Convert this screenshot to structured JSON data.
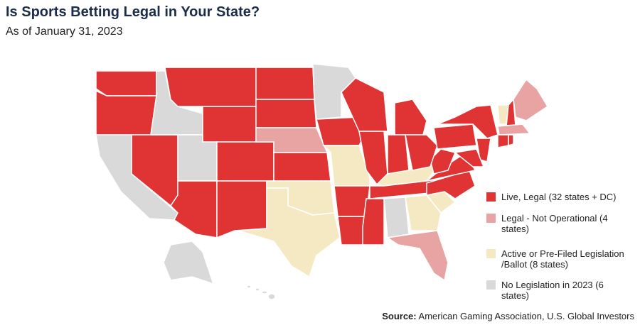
{
  "header": {
    "title": "Is Sports Betting Legal in Your State?",
    "subtitle": "As of January 31, 2023"
  },
  "legend": {
    "items": [
      {
        "label": "Live, Legal (32 states + DC)",
        "color": "#e03434"
      },
      {
        "label": "Legal - Not Operational (4 states)",
        "color": "#e8a3a3"
      },
      {
        "label": "Active or Pre-Filed Legislation /Ballot (8 states)",
        "color": "#f5e9c3"
      },
      {
        "label": "No Legislation in 2023 (6 states)",
        "color": "#d9d9d9"
      }
    ]
  },
  "source": {
    "label": "Source:",
    "text": "American Gaming Association, U.S. Global Investors"
  }
}
